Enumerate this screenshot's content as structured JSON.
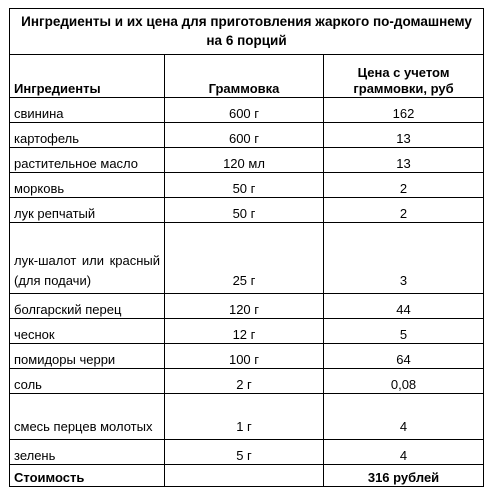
{
  "title": "Ингредиенты и их цена для приготовления жаркого по-домашнему на 6 порций",
  "columns": [
    "Ингредиенты",
    "Граммовка",
    "Цена с учетом граммовки, руб"
  ],
  "rows": [
    {
      "name": "свинина",
      "amount": "600 г",
      "price": "162"
    },
    {
      "name": "картофель",
      "amount": "600 г",
      "price": "13"
    },
    {
      "name": "растительное масло",
      "amount": "120 мл",
      "price": "13"
    },
    {
      "name": "морковь",
      "amount": "50 г",
      "price": "2"
    },
    {
      "name": "лук репчатый",
      "amount": "50 г",
      "price": "2"
    },
    {
      "name": "лук-шалот или красный (для подачи)",
      "amount": "25 г",
      "price": "3"
    },
    {
      "name": "болгарский перец",
      "amount": "120 г",
      "price": "44"
    },
    {
      "name": "чеснок",
      "amount": "12 г",
      "price": "5"
    },
    {
      "name": "помидоры черри",
      "amount": "100 г",
      "price": "64"
    },
    {
      "name": "соль",
      "amount": "2 г",
      "price": "0,08"
    },
    {
      "name": "смесь перцев молотых",
      "amount": "1 г",
      "price": "4"
    },
    {
      "name": "зелень",
      "amount": "5 г",
      "price": "4"
    }
  ],
  "total": {
    "label": "Стоимость",
    "value": "316 рублей"
  }
}
